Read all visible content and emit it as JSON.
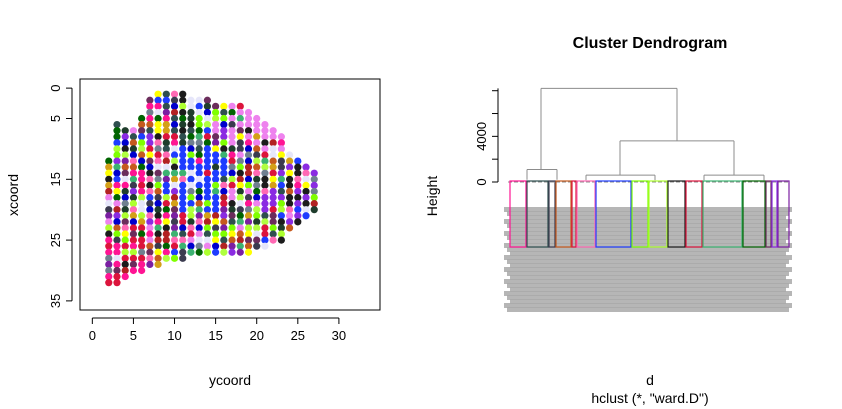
{
  "chart_data": [
    {
      "type": "scatter",
      "title": "",
      "xlabel": "ycoord",
      "ylabel": "xcoord",
      "xlim": [
        -1.5,
        35
      ],
      "ylim": [
        36.5,
        -1.5
      ],
      "y_reversed": true,
      "xticks": [
        0,
        5,
        10,
        15,
        20,
        25,
        30
      ],
      "yticks": [
        0,
        5,
        15,
        25,
        35
      ],
      "grid": false,
      "legend": "none",
      "point_style": "filled circles on a unit grid, colored by cluster",
      "palette": [
        "#e6e6fa",
        "#ee82ee",
        "#ff1493",
        "#dc143c",
        "#b22222",
        "#c65a1e",
        "#1f3d2c",
        "#006400",
        "#3cb371",
        "#7fff00",
        "#b0ff40",
        "#adff2f",
        "#ffff00",
        "#1e3cff",
        "#0000cd",
        "#2f4f4f",
        "#3b3b4f",
        "#708090",
        "#6b2d5c",
        "#7b1fa2",
        "#8a2be2",
        "#1c1c1c",
        "#ff69b4",
        "#d4a017"
      ],
      "column_extents": {
        "x": [
          2,
          3,
          4,
          5,
          6,
          7,
          8,
          9,
          10,
          11,
          12,
          13,
          14,
          15,
          16,
          17,
          18,
          19,
          20,
          21,
          22,
          23,
          24,
          25,
          26,
          27
        ],
        "ymin": [
          12,
          6,
          7,
          7,
          5,
          2,
          1,
          1,
          1,
          1,
          2,
          2,
          2,
          3,
          3,
          3,
          3,
          4,
          5,
          6,
          7,
          8,
          11,
          12,
          13,
          14
        ],
        "ymax": [
          32,
          32,
          31,
          30,
          30,
          29,
          29,
          28,
          28,
          28,
          27,
          27,
          27,
          27,
          27,
          27,
          27,
          27,
          26,
          26,
          25,
          25,
          23,
          22,
          21,
          20
        ]
      }
    },
    {
      "type": "dendrogram",
      "title": "Cluster Dendrogram",
      "xlabel": "d",
      "sublabel": "hclust (*, \"ward.D\")",
      "ylabel": "Height",
      "yticks": [
        0,
        4000
      ],
      "ylim": [
        0,
        8500
      ],
      "root_height": 8200,
      "merges": [
        {
          "left": "A",
          "right": "B",
          "height": 8200
        },
        {
          "left": "B1",
          "right": "B2",
          "height": 3600
        },
        {
          "left": "A1",
          "right": "A2",
          "height": 1100
        },
        {
          "left": "B1a",
          "right": "B1b",
          "height": 600
        },
        {
          "left": "B2a",
          "right": "B2b",
          "height": 600
        }
      ],
      "cluster_count": 16,
      "cluster_colors": [
        "#ff1493",
        "#2f4f4f",
        "#3b3b4f",
        "#c65a1e",
        "#dc143c",
        "#ff69b4",
        "#1e3cff",
        "#7fff00",
        "#adff2f",
        "#1c1c1c",
        "#dc143c",
        "#3cb371",
        "#006400",
        "#6b2d5c",
        "#8a2be2",
        "#7b1fa2"
      ],
      "leaf_label_color": "#a9a9a9"
    }
  ]
}
